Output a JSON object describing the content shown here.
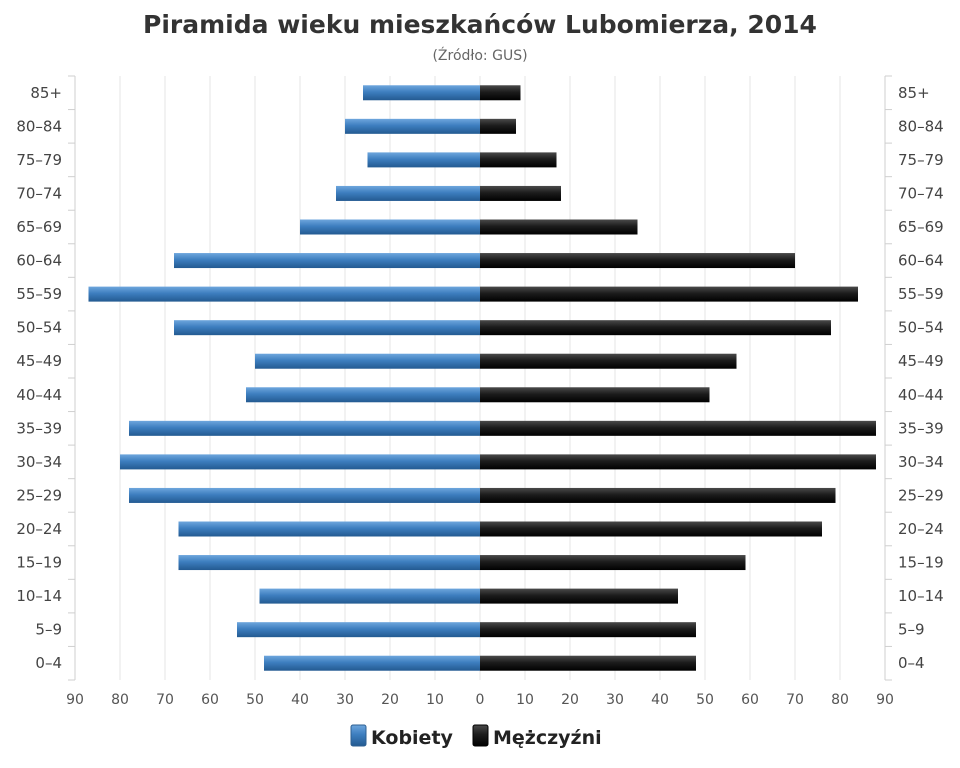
{
  "chart_data": {
    "type": "bar",
    "orientation": "horizontal-pyramid",
    "title": "Piramida wieku mieszkańców Lubomierza, 2014",
    "subtitle": "(Źródło: GUS)",
    "categories": [
      "85+",
      "80–84",
      "75–79",
      "70–74",
      "65–69",
      "60–64",
      "55–59",
      "50–54",
      "45–49",
      "40–44",
      "35–39",
      "30–34",
      "25–29",
      "20–24",
      "15–19",
      "10–14",
      "5–9",
      "0–4"
    ],
    "series": [
      {
        "name": "Kobiety",
        "color": "#3d7ebf",
        "values": [
          26,
          30,
          25,
          32,
          40,
          68,
          87,
          68,
          50,
          52,
          78,
          80,
          78,
          67,
          67,
          49,
          54,
          48
        ]
      },
      {
        "name": "Mężczyźni",
        "color": "#1a1a1a",
        "values": [
          9,
          8,
          17,
          18,
          35,
          70,
          84,
          78,
          57,
          51,
          88,
          88,
          79,
          76,
          59,
          44,
          48,
          48
        ]
      }
    ],
    "x_ticks": [
      "90",
      "80",
      "70",
      "60",
      "50",
      "40",
      "30",
      "20",
      "10",
      "0",
      "10",
      "20",
      "30",
      "40",
      "50",
      "60",
      "70",
      "80",
      "90"
    ],
    "xlim": [
      -90,
      90
    ],
    "grid": true,
    "legend": "bottom-center"
  }
}
